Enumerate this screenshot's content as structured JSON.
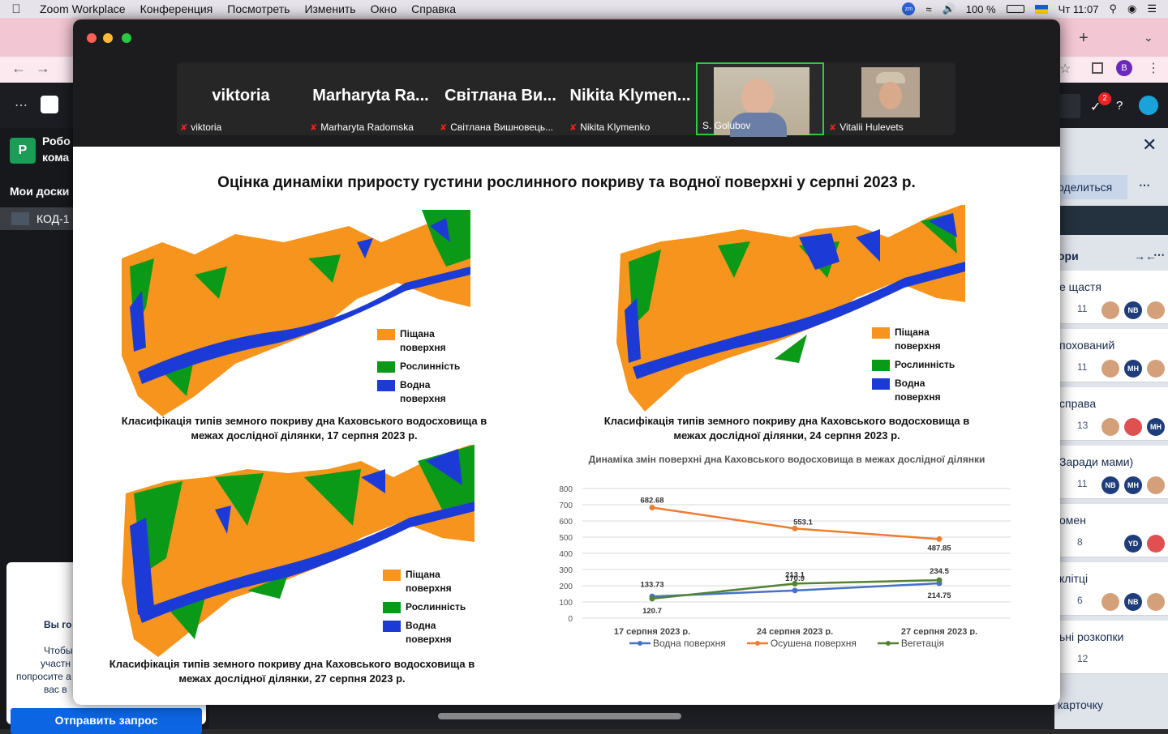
{
  "menubar": {
    "apple_icon": "apple-icon",
    "app_name": "Zoom Workplace",
    "menus": [
      "Конференция",
      "Посмотреть",
      "Изменить",
      "Окно",
      "Справка"
    ],
    "battery": "100 %",
    "clock": "Чт 11:07"
  },
  "browser": {
    "board_label_1": "Робо",
    "board_label_2": "кома",
    "my_boards": "Мои доски",
    "board_item": "КОД-1",
    "share": "оделиться",
    "panel_title": "ори",
    "notif_count": "2",
    "avatar_letter": "B",
    "cards": [
      {
        "title": "е щастя",
        "count": "11",
        "avatars": [
          "",
          "NB",
          ""
        ]
      },
      {
        "title": "похований",
        "count": "11",
        "count2": "1",
        "avatars": [
          "",
          "MH",
          ""
        ]
      },
      {
        "title": "справа",
        "count": "13",
        "avatars": [
          "",
          "",
          "MH",
          ""
        ]
      },
      {
        "title": "Заради мами)",
        "count": "11",
        "avatars": [
          "NB",
          "MH",
          ""
        ]
      },
      {
        "title": "омен",
        "count": "8",
        "avatars": [
          "YD",
          ""
        ]
      },
      {
        "title": "клітці",
        "count": "6",
        "avatars": [
          "",
          "NB",
          ""
        ]
      },
      {
        "title": "ьні розкопки",
        "count": "12",
        "avatars": []
      }
    ],
    "add_card": "карточку",
    "overlay_lines": [
      "Вы го",
      "Чтобы",
      "участн",
      "попросите а",
      "вас в"
    ],
    "overlay_button": "Отправить запрос"
  },
  "participants": [
    {
      "big": "viktoria",
      "name": "viktoria",
      "muted": true
    },
    {
      "big": "Marharyta Ra...",
      "name": "Marharyta Radomska",
      "muted": true
    },
    {
      "big": "Світлана Ви...",
      "name": "Світлана Вишновець...",
      "muted": true
    },
    {
      "big": "Nikita Klymen...",
      "name": "Nikita Klymenko",
      "muted": true
    },
    {
      "big": "",
      "name": "S. Golubov",
      "muted": false,
      "video": true,
      "active": true
    },
    {
      "big": "",
      "name": "Vitalii Hulevets",
      "muted": true,
      "video": true
    }
  ],
  "slide": {
    "title": "Оцінка динаміки приросту густини рослинного покриву та водної поверхні у серпні 2023 р.",
    "legend": {
      "sand": "Піщана поверхня",
      "veg": "Рослинність",
      "water": "Водна поверхня"
    },
    "colors": {
      "sand": "#f7941d",
      "veg": "#0a9a18",
      "water": "#1c3bd6"
    },
    "captions": [
      "Класифікація типів земного покриву дна Каховського водосховища в межах дослідної ділянки, 17 серпня 2023 р.",
      "Класифікація типів земного покриву дна Каховського водосховища в межах дослідної ділянки, 24 серпня 2023 р.",
      "Класифікація типів земного покриву дна Каховського водосховища в межах дослідної ділянки, 27 серпня 2023 р."
    ]
  },
  "chart_data": {
    "type": "line",
    "title": "Динаміка змін поверхні дна Каховського водосховища в межах дослідної ділянки",
    "categories": [
      "17 серпня 2023 р.",
      "24 серпня 2023 р.",
      "27 серпня 2023 р."
    ],
    "yticks": [
      "0",
      "100",
      "200",
      "300",
      "400",
      "500",
      "600",
      "700",
      "800"
    ],
    "ylim": [
      0,
      800
    ],
    "grid": true,
    "legend_position": "bottom",
    "series": [
      {
        "name": "Водна поверхня",
        "color": "#4472c4",
        "values": [
          133.73,
          170.9,
          214.75
        ],
        "labels": [
          "133.73",
          "170.9",
          "214.75"
        ]
      },
      {
        "name": "Осушена поверхня",
        "color": "#ed7d31",
        "values": [
          682.68,
          553.1,
          487.85
        ],
        "labels": [
          "682.68",
          "553.1",
          "487.85"
        ]
      },
      {
        "name": "Вегетація",
        "color": "#548235",
        "values": [
          120.7,
          213.1,
          234.5
        ],
        "labels": [
          "120.7",
          "213.1",
          "234.5"
        ]
      }
    ]
  }
}
